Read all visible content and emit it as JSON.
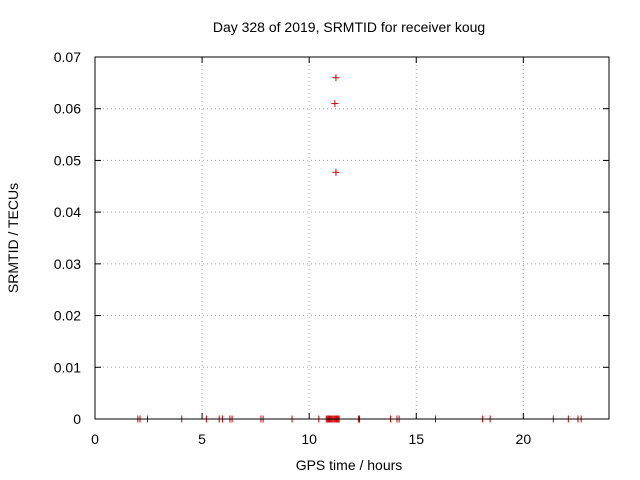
{
  "chart_data": {
    "type": "scatter",
    "title": "Day 328 of 2019, SRMTID for receiver koug",
    "xlabel": "GPS time / hours",
    "ylabel": "SRMTID / TECUs",
    "xlim": [
      0,
      24
    ],
    "ylim": [
      0,
      0.07
    ],
    "xticks": [
      0,
      5,
      10,
      15,
      20
    ],
    "xtick_labels": [
      "0",
      "5",
      "10",
      "15",
      "20"
    ],
    "yticks": [
      0,
      0.01,
      0.02,
      0.03,
      0.04,
      0.05,
      0.06,
      0.07
    ],
    "ytick_labels": [
      "0",
      "0.01",
      "0.02",
      "0.03",
      "0.04",
      "0.05",
      "0.06",
      "0.07"
    ],
    "grid": true,
    "marker": "+",
    "marker_color": "#cc0000",
    "series": [
      {
        "name": "SRMTID",
        "x": [
          2.0,
          2.1,
          2.45,
          4.05,
          5.2,
          5.8,
          5.95,
          6.3,
          6.4,
          7.75,
          7.85,
          9.2,
          10.45,
          10.8,
          10.85,
          10.9,
          10.95,
          11.0,
          11.05,
          11.1,
          11.15,
          11.2,
          11.25,
          11.3,
          11.35,
          11.25,
          11.2,
          11.25,
          11.4,
          12.3,
          12.35,
          13.8,
          14.1,
          14.2,
          15.9,
          18.1,
          18.45,
          21.4,
          22.1,
          22.55,
          22.7
        ],
        "y": [
          0,
          0,
          0,
          0,
          0,
          0,
          0,
          0,
          0,
          0,
          0,
          0,
          0,
          0,
          0,
          0,
          0,
          0,
          0,
          0,
          0,
          0,
          0,
          0,
          0,
          0.066,
          0.061,
          0.0477,
          0,
          0,
          0,
          0,
          0,
          0,
          0,
          0,
          0,
          0,
          0,
          0,
          0
        ]
      }
    ]
  }
}
